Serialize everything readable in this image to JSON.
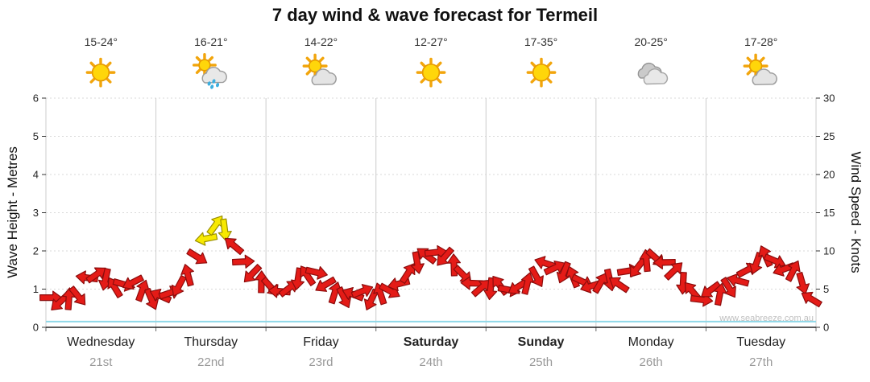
{
  "title": "7 day wind & wave forecast for Termeil",
  "watermark": "www.seabreeze.com.au",
  "axes": {
    "left_label": "Wave Height - Metres",
    "right_label": "Wind Speed - Knots",
    "left_ticks": [
      0,
      1,
      2,
      3,
      4,
      5,
      6
    ],
    "right_ticks": [
      0,
      5,
      10,
      15,
      20,
      25,
      30
    ]
  },
  "days": [
    {
      "name": "Wednesday",
      "date": "21st",
      "temp": "15-24°",
      "icon": "sunny",
      "bold": false
    },
    {
      "name": "Thursday",
      "date": "22nd",
      "temp": "16-21°",
      "icon": "rain",
      "bold": false
    },
    {
      "name": "Friday",
      "date": "23rd",
      "temp": "14-22°",
      "icon": "partly-cloudy",
      "bold": false
    },
    {
      "name": "Saturday",
      "date": "24th",
      "temp": "12-27°",
      "icon": "sunny",
      "bold": true
    },
    {
      "name": "Sunday",
      "date": "25th",
      "temp": "17-35°",
      "icon": "sunny",
      "bold": true
    },
    {
      "name": "Monday",
      "date": "26th",
      "temp": "20-25°",
      "icon": "cloudy",
      "bold": false
    },
    {
      "name": "Tuesday",
      "date": "27th",
      "temp": "17-28°",
      "icon": "partly-cloudy",
      "bold": false
    }
  ],
  "colors": {
    "arrow_red": "#E41B17",
    "arrow_red_border": "#8C0C0C",
    "arrow_yellow": "#F7E900",
    "arrow_yellow_border": "#9A8F00",
    "wave_line": "#8FD8E8",
    "grid": "#CCCCCC",
    "grid_dotted": "#D9D9D9",
    "axis": "#222222",
    "date_gray": "#999999"
  },
  "chart_data": {
    "type": "scatter",
    "title": "7 day wind & wave forecast for Termeil",
    "x_categories": [
      "Wednesday 21st",
      "Thursday 22nd",
      "Friday 23rd",
      "Saturday 24th",
      "Sunday 25th",
      "Monday 26th",
      "Tuesday 27th"
    ],
    "ylim_left_metres": [
      0,
      6
    ],
    "ylim_right_knots": [
      0,
      30
    ],
    "grid": "vertical day separators, dotted horizontal metre lines",
    "series": [
      {
        "name": "Wind Speed (knots, arrows coloured by strength, rotated by direction)",
        "points_per_day": 12,
        "strong_threshold_knots": 11.5,
        "knots": [
          3.5,
          3,
          3.5,
          4,
          6.5,
          7,
          6.5,
          5.5,
          6,
          5.5,
          4.5,
          3.5,
          4,
          4.5,
          5.5,
          7,
          9.5,
          12,
          13,
          12.5,
          10.5,
          8.5,
          7,
          6,
          5.5,
          5,
          5.5,
          6,
          6.5,
          7,
          5.5,
          4.5,
          4,
          4.5,
          5,
          4,
          4,
          4.5,
          5.5,
          7,
          8.5,
          9.5,
          10,
          9.5,
          8.5,
          6.5,
          5.5,
          5,
          5,
          5.5,
          5,
          5.5,
          6,
          7,
          8,
          7.5,
          7,
          6.5,
          6,
          5.5,
          6,
          6.5,
          6,
          7,
          7.5,
          8.5,
          9,
          8.5,
          7.5,
          6,
          5,
          4,
          4.5,
          4,
          5,
          6,
          7.5,
          8.5,
          9.5,
          9,
          8,
          7,
          5.5,
          3.5
        ],
        "dir_deg": [
          0,
          137,
          274,
          51,
          188,
          325,
          102,
          239,
          16,
          153,
          290,
          67,
          204,
          341,
          118,
          255,
          32,
          169,
          306,
          83,
          220,
          357,
          134,
          271,
          48,
          185,
          322,
          99,
          236,
          13,
          150,
          287,
          64,
          201,
          338,
          115,
          252,
          29,
          166,
          303,
          80,
          217,
          354,
          131,
          268,
          45,
          182,
          319,
          96,
          233,
          10,
          147,
          284,
          61,
          198,
          335,
          112,
          249,
          26,
          163,
          300,
          77,
          214,
          351,
          128,
          265,
          42,
          179,
          316,
          93,
          230,
          7,
          144,
          281,
          58,
          195,
          332,
          109,
          246,
          23,
          160,
          297,
          74,
          211
        ]
      },
      {
        "name": "Wave Height (metres)",
        "constant_m": 0.15
      }
    ]
  }
}
